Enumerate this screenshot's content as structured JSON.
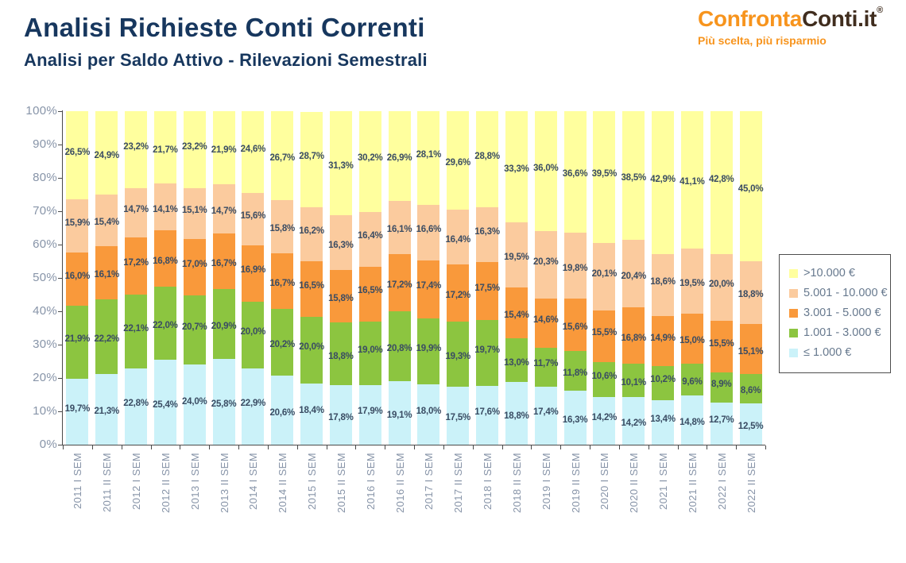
{
  "header": {
    "title": "Analisi Richieste Conti Correnti",
    "subtitle": "Analisi per Saldo Attivo - Rilevazioni Semestrali",
    "logo": {
      "part1": "Confronta",
      "part2": "Conti.it",
      "registered": "®",
      "tagline": "Più scelta, più risparmio"
    }
  },
  "chart_data": {
    "type": "bar",
    "stacked": true,
    "percent_stacked": true,
    "title": "Analisi Richieste Conti Correnti",
    "subtitle": "Analisi per Saldo Attivo - Rilevazioni Semestrali",
    "xlabel": "",
    "ylabel": "",
    "ylim": [
      0,
      100
    ],
    "y_ticks": [
      "100%",
      "90%",
      "80%",
      "70%",
      "60%",
      "50%",
      "40%",
      "30%",
      "20%",
      "10%",
      "0%"
    ],
    "grid": false,
    "legend_position": "right",
    "label_decimal_separator": ",",
    "categories": [
      "2011 I SEM",
      "2011 II SEM",
      "2012 I SEM",
      "2012 II SEM",
      "2013 I SEM",
      "2013 II SEM",
      "2014 I SEM",
      "2014 II SEM",
      "2015 I SEM",
      "2015 II SEM",
      "2016 I SEM",
      "2016 II SEM",
      "2017 I SEM",
      "2017 II SEM",
      "2018 I SEM",
      "2018 II SEM",
      "2019 I SEM",
      "2019 II SEM",
      "2020 I SEM",
      "2020 II SEM",
      "2021 I SEM",
      "2021 II SEM",
      "2022 I SEM",
      "2022 II SEM"
    ],
    "series": [
      {
        "name": "≤ 1.000 €",
        "color": "#CBF2F9",
        "values": [
          19.7,
          21.3,
          22.8,
          25.4,
          24.0,
          25.8,
          22.9,
          20.6,
          18.4,
          17.8,
          17.9,
          19.1,
          18.0,
          17.5,
          17.6,
          18.8,
          17.4,
          16.3,
          14.2,
          14.2,
          13.4,
          14.8,
          12.7,
          12.5
        ]
      },
      {
        "name": "1.001 - 3.000 €",
        "color": "#8CC540",
        "values": [
          21.9,
          22.2,
          22.1,
          22.0,
          20.7,
          20.9,
          20.0,
          20.2,
          20.0,
          18.8,
          19.0,
          20.8,
          19.9,
          19.3,
          19.7,
          13.0,
          11.7,
          11.8,
          10.6,
          10.1,
          10.2,
          9.6,
          8.9,
          8.6
        ]
      },
      {
        "name": "3.001 - 5.000 €",
        "color": "#F9993B",
        "values": [
          16.0,
          16.1,
          17.2,
          16.8,
          17.0,
          16.7,
          16.9,
          16.7,
          16.5,
          15.8,
          16.5,
          17.2,
          17.4,
          17.2,
          17.5,
          15.4,
          14.6,
          15.6,
          15.5,
          16.8,
          14.9,
          15.0,
          15.5,
          15.1
        ]
      },
      {
        "name": "5.001 - 10.000 €",
        "color": "#FBCB9E",
        "values": [
          15.9,
          15.4,
          14.7,
          14.1,
          15.1,
          14.7,
          15.6,
          15.8,
          16.2,
          16.3,
          16.4,
          16.1,
          16.6,
          16.4,
          16.3,
          19.5,
          20.3,
          19.8,
          20.1,
          20.4,
          18.6,
          19.5,
          20.0,
          18.8
        ]
      },
      {
        "name": ">10.000 €",
        "color": "#FFFF9E",
        "values": [
          26.5,
          24.9,
          23.2,
          21.7,
          23.2,
          21.9,
          24.6,
          26.7,
          28.7,
          31.3,
          30.2,
          26.9,
          28.1,
          29.6,
          28.8,
          33.3,
          36.0,
          36.6,
          39.5,
          38.5,
          42.9,
          41.1,
          42.8,
          45.0
        ]
      }
    ],
    "legend": [
      ">10.000 €",
      "5.001 - 10.000 €",
      "3.001 - 5.000 €",
      "1.001 - 3.000 €",
      "≤ 1.000 €"
    ]
  }
}
